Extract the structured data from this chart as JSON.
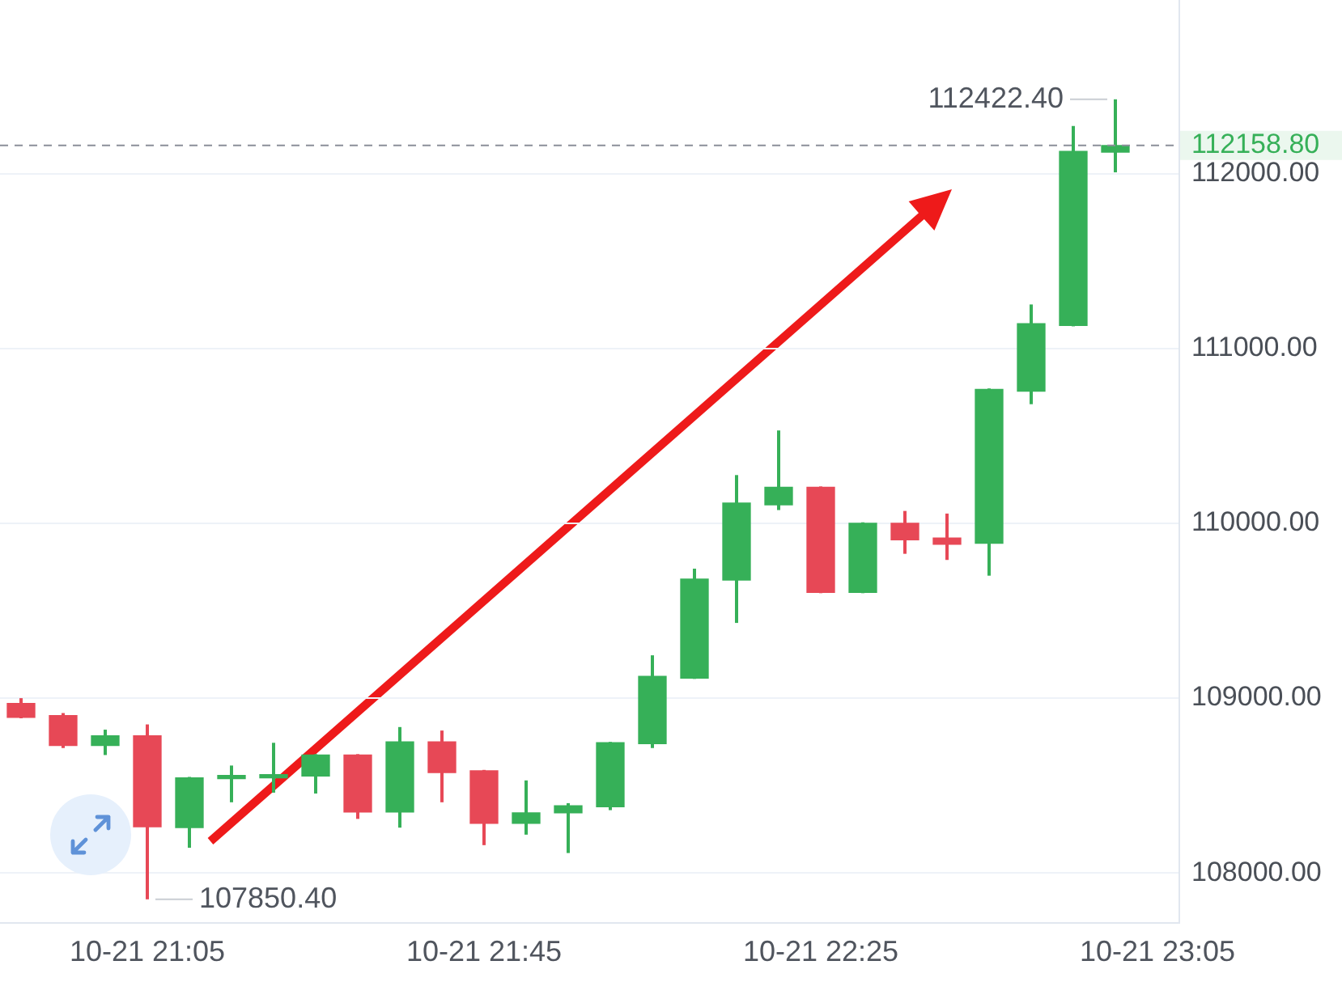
{
  "chart_data": {
    "type": "candlestick",
    "categories": [
      null,
      null,
      null,
      "10-21 21:05",
      null,
      null,
      null,
      null,
      null,
      null,
      null,
      "10-21 21:45",
      null,
      null,
      null,
      null,
      null,
      null,
      null,
      "10-21 22:25",
      null,
      null,
      null,
      null,
      null,
      null,
      null,
      "10-21 23:05"
    ],
    "ohlc": [
      [
        108970,
        109000,
        108885,
        108890
      ],
      [
        108900,
        108915,
        108715,
        108730
      ],
      [
        108730,
        108820,
        108675,
        108785
      ],
      [
        108785,
        108850,
        107850.4,
        108265
      ],
      [
        108260,
        108550,
        108145,
        108545
      ],
      [
        108540,
        108615,
        108405,
        108550
      ],
      [
        108545,
        108745,
        108460,
        108555
      ],
      [
        108555,
        108680,
        108455,
        108675
      ],
      [
        108675,
        108680,
        108310,
        108350
      ],
      [
        108350,
        108835,
        108260,
        108750
      ],
      [
        108750,
        108815,
        108405,
        108575
      ],
      [
        108585,
        108590,
        108160,
        108285
      ],
      [
        108285,
        108530,
        108220,
        108345
      ],
      [
        108345,
        108400,
        108115,
        108385
      ],
      [
        108380,
        108750,
        108360,
        108745
      ],
      [
        108740,
        109245,
        108715,
        109125
      ],
      [
        109115,
        109740,
        109110,
        109680
      ],
      [
        109675,
        110275,
        109430,
        110115
      ],
      [
        110105,
        110530,
        110075,
        110205
      ],
      [
        110205,
        110210,
        109600,
        109605
      ],
      [
        109605,
        110005,
        109600,
        110000
      ],
      [
        110000,
        110070,
        109825,
        109905
      ],
      [
        109915,
        110055,
        109790,
        109880
      ],
      [
        109885,
        110770,
        109700,
        110765
      ],
      [
        110755,
        111250,
        110680,
        111140
      ],
      [
        111130,
        112270,
        111125,
        112125
      ],
      [
        112120,
        112422.4,
        112005,
        112158.8
      ],
      null
    ],
    "colors": [
      "#e74856",
      "#e74856",
      "#36b058",
      "#e74856",
      "#36b058",
      "#36b058",
      "#36b058",
      "#36b058",
      "#e74856",
      "#36b058",
      "#e74856",
      "#e74856",
      "#36b058",
      "#36b058",
      "#36b058",
      "#36b058",
      "#36b058",
      "#36b058",
      "#36b058",
      "#e74856",
      "#36b058",
      "#e74856",
      "#e74856",
      "#36b058",
      "#36b058",
      "#36b058",
      "#36b058",
      null
    ],
    "ylim": [
      107720,
      112990
    ],
    "yticks": [
      {
        "value": 108000,
        "label": "108000.00"
      },
      {
        "value": 109000,
        "label": "109000.00"
      },
      {
        "value": 110000,
        "label": "110000.00"
      },
      {
        "value": 111000,
        "label": "111000.00"
      },
      {
        "value": 112000,
        "label": "112000.00"
      }
    ],
    "grid": "y",
    "ref_lines": [
      {
        "axis": "y",
        "value": 112158.8,
        "label": "112158.80",
        "color": "#8a8f99",
        "line_style": "dashed"
      }
    ],
    "annotations": [
      "112422.40",
      {
        "text": "107850.40",
        "x": "10-21 21:05",
        "y": 107850.4
      }
    ]
  }
}
